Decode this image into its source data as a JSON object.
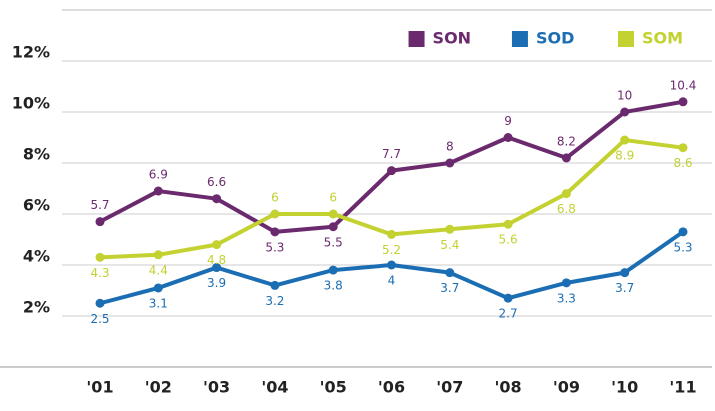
{
  "chart_data": {
    "type": "line",
    "categories": [
      "'01",
      "'02",
      "'03",
      "'04",
      "'05",
      "'06",
      "'07",
      "'08",
      "'09",
      "'10",
      "'11"
    ],
    "series": [
      {
        "name": "SON",
        "color": "#6b2a6e",
        "values": [
          5.7,
          6.9,
          6.6,
          5.3,
          5.5,
          7.7,
          8,
          9,
          8.2,
          10,
          10.4
        ]
      },
      {
        "name": "SOD",
        "color": "#1b6eb4",
        "values": [
          2.5,
          3.1,
          3.9,
          3.2,
          3.8,
          4,
          3.7,
          2.7,
          3.3,
          3.7,
          5.3
        ]
      },
      {
        "name": "SOM",
        "color": "#c3d131",
        "values": [
          4.3,
          4.4,
          4.8,
          6,
          6,
          5.2,
          5.4,
          5.6,
          6.8,
          8.9,
          8.6
        ]
      }
    ],
    "ylim": [
      0,
      14
    ],
    "yticks": [
      {
        "value": 2,
        "label": "2%"
      },
      {
        "value": 4,
        "label": "4%"
      },
      {
        "value": 6,
        "label": "6%"
      },
      {
        "value": 8,
        "label": "8%"
      },
      {
        "value": 10,
        "label": "10%"
      },
      {
        "value": 12,
        "label": "12%"
      }
    ],
    "grid": true,
    "legend": "top-right"
  }
}
